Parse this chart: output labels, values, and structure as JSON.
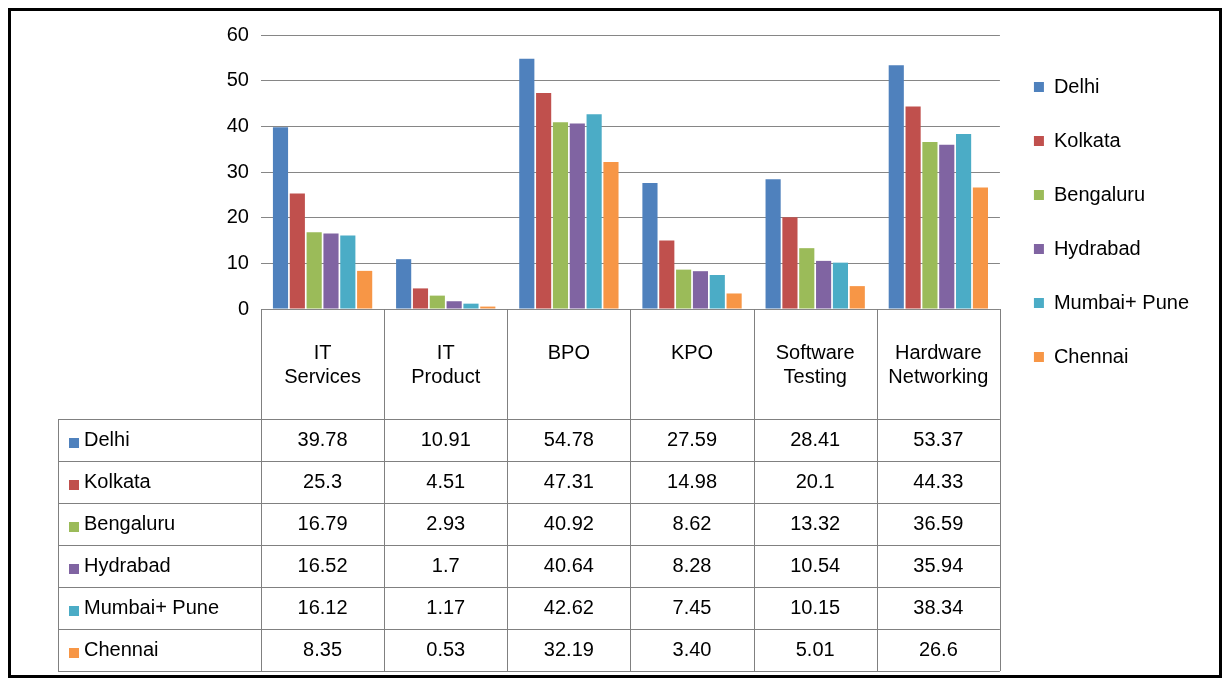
{
  "chart_data": {
    "type": "bar",
    "categories": [
      "IT Services",
      "IT Product",
      "BPO",
      "KPO",
      "Software Testing",
      "Hardware Networking"
    ],
    "series": [
      {
        "name": "Delhi",
        "color": "#4f81bd",
        "values": [
          39.78,
          10.91,
          54.78,
          27.59,
          28.41,
          53.37
        ],
        "value_labels": [
          "39.78",
          "10.91",
          "54.78",
          "27.59",
          "28.41",
          "53.37"
        ]
      },
      {
        "name": "Kolkata",
        "color": "#c0504d",
        "values": [
          25.3,
          4.51,
          47.31,
          14.98,
          20.1,
          44.33
        ],
        "value_labels": [
          "25.3",
          "4.51",
          "47.31",
          "14.98",
          "20.1",
          "44.33"
        ]
      },
      {
        "name": "Bengaluru",
        "color": "#9bbb59",
        "values": [
          16.79,
          2.93,
          40.92,
          8.62,
          13.32,
          36.59
        ],
        "value_labels": [
          "16.79",
          "2.93",
          "40.92",
          "8.62",
          "13.32",
          "36.59"
        ]
      },
      {
        "name": "Hydrabad",
        "color": "#8064a2",
        "values": [
          16.52,
          1.7,
          40.64,
          8.28,
          10.54,
          35.94
        ],
        "value_labels": [
          "16.52",
          "1.7",
          "40.64",
          "8.28",
          "10.54",
          "35.94"
        ]
      },
      {
        "name": "Mumbai+ Pune",
        "color": "#4bacc6",
        "values": [
          16.12,
          1.17,
          42.62,
          7.45,
          10.15,
          38.34
        ],
        "value_labels": [
          "16.12",
          "1.17",
          "42.62",
          "7.45",
          "10.15",
          "38.34"
        ]
      },
      {
        "name": "Chennai",
        "color": "#f79646",
        "values": [
          8.35,
          0.53,
          32.19,
          3.4,
          5.01,
          26.6
        ],
        "value_labels": [
          "8.35",
          "0.53",
          "32.19",
          "3.40",
          "5.01",
          "26.6"
        ]
      }
    ],
    "ylim": [
      0,
      60
    ],
    "yticks": [
      0,
      10,
      20,
      30,
      40,
      50,
      60
    ],
    "grid": "y",
    "legend": "right"
  }
}
